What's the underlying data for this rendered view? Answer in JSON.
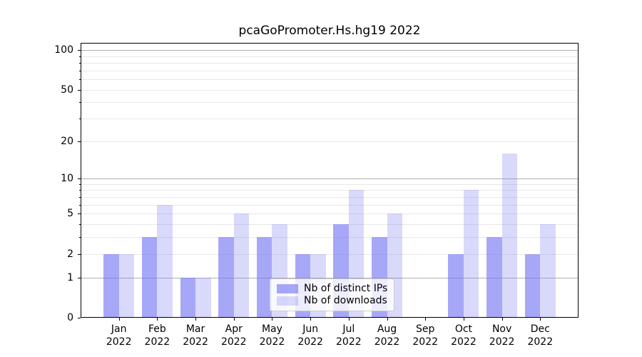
{
  "chart_data": {
    "type": "bar",
    "title": "pcaGoPromoter.Hs.hg19 2022",
    "scale": "log1p",
    "categories": [
      "Jan",
      "Feb",
      "Mar",
      "Apr",
      "May",
      "Jun",
      "Jul",
      "Aug",
      "Sep",
      "Oct",
      "Nov",
      "Dec"
    ],
    "category_year": "2022",
    "series": [
      {
        "name": "Nb of distinct IPs",
        "color": "rgba(120,120,245,0.65)",
        "values": [
          2,
          3,
          1,
          3,
          3,
          2,
          4,
          3,
          0,
          2,
          3,
          2
        ]
      },
      {
        "name": "Nb of downloads",
        "color": "rgba(120,120,245,0.28)",
        "values": [
          2,
          6,
          1,
          5,
          4,
          2,
          8,
          5,
          0,
          8,
          16,
          4
        ]
      }
    ],
    "ylim": [
      0,
      113.3
    ],
    "yticks": [
      {
        "label": "100",
        "value": 100
      },
      {
        "label": "50",
        "value": 50
      },
      {
        "label": "20",
        "value": 20
      },
      {
        "label": "10",
        "value": 10
      },
      {
        "label": "5",
        "value": 5
      },
      {
        "label": "2",
        "value": 2
      },
      {
        "label": "1",
        "value": 1
      },
      {
        "label": "0",
        "value": 0
      }
    ],
    "yticks_minor": [
      90,
      80,
      70,
      60,
      40,
      30,
      9,
      8,
      7,
      6,
      4,
      3
    ],
    "gridlines_major": [
      100,
      10,
      1
    ],
    "gridlines_minor": [
      90,
      80,
      70,
      60,
      50,
      40,
      30,
      20,
      9,
      8,
      7,
      6,
      5,
      4,
      3,
      2
    ],
    "grid_color_major": "#b0b0b0",
    "grid_color_minor": "#e8e8e8",
    "legend_position": "lower center",
    "xlabel": "",
    "ylabel": ""
  }
}
